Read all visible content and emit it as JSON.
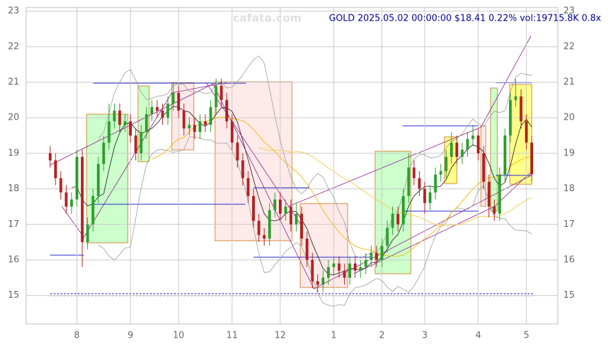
{
  "chart_data": {
    "type": "candlestick",
    "title": "GOLD 2025.05.02 00:00:00 $18.41 0.22% vol:19715.8K 0.8x",
    "watermark": "cafata.com",
    "categories": [
      null,
      null,
      null,
      null,
      null,
      "8",
      null,
      null,
      null,
      null,
      null,
      null,
      null,
      null,
      null,
      "9",
      null,
      null,
      null,
      null,
      null,
      null,
      null,
      null,
      "10",
      null,
      null,
      null,
      null,
      null,
      null,
      null,
      null,
      null,
      "11",
      null,
      null,
      null,
      null,
      null,
      null,
      null,
      null,
      "12",
      null,
      null,
      null,
      null,
      null,
      null,
      null,
      null,
      null,
      "1",
      null,
      null,
      null,
      null,
      null,
      null,
      null,
      null,
      "2",
      null,
      null,
      null,
      null,
      null,
      null,
      null,
      "3",
      null,
      null,
      null,
      null,
      null,
      null,
      null,
      null,
      null,
      "4",
      null,
      null,
      null,
      null,
      null,
      null,
      null,
      null,
      "5",
      null
    ],
    "open": [
      19.0,
      18.8,
      18.3,
      17.9,
      17.5,
      17.7,
      18.9,
      16.5,
      17.0,
      17.8,
      18.7,
      19.3,
      19.9,
      20.2,
      19.8,
      19.9,
      19.5,
      19.0,
      19.6,
      20.1,
      20.3,
      20.2,
      20.0,
      20.4,
      20.7,
      20.2,
      19.7,
      19.8,
      19.6,
      19.9,
      19.8,
      20.3,
      20.9,
      20.5,
      19.9,
      19.3,
      18.8,
      18.3,
      17.8,
      17.1,
      16.7,
      16.6,
      17.4,
      17.7,
      17.3,
      17.5,
      17.0,
      17.3,
      16.6,
      16.0,
      15.4,
      15.3,
      15.5,
      15.8,
      15.9,
      15.7,
      15.5,
      15.9,
      15.7,
      15.8,
      16.0,
      16.2,
      16.0,
      16.4,
      16.9,
      17.3,
      17.0,
      17.8,
      18.6,
      18.3,
      18.0,
      17.6,
      17.9,
      18.4,
      18.5,
      18.9,
      19.3,
      18.9,
      19.1,
      19.4,
      19.5,
      19.0,
      18.2,
      17.5,
      17.3,
      18.4,
      19.5,
      20.5,
      20.6,
      19.9,
      19.3
    ],
    "high": [
      19.2,
      19.0,
      18.5,
      18.1,
      17.9,
      19.1,
      19.1,
      17.2,
      18.0,
      18.9,
      19.5,
      20.4,
      20.4,
      20.4,
      20.1,
      20.1,
      19.7,
      19.8,
      20.3,
      20.5,
      20.5,
      20.4,
      20.6,
      21.0,
      20.9,
      20.4,
      20.0,
      20.0,
      20.1,
      20.1,
      20.5,
      21.1,
      21.1,
      20.7,
      20.1,
      19.5,
      19.0,
      18.5,
      18.0,
      17.3,
      16.9,
      17.6,
      17.9,
      17.9,
      17.7,
      17.7,
      17.6,
      17.5,
      16.8,
      16.2,
      15.6,
      15.7,
      16.0,
      16.1,
      16.1,
      15.9,
      16.1,
      16.1,
      16.0,
      16.2,
      16.4,
      16.4,
      16.6,
      17.1,
      17.5,
      17.5,
      18.0,
      19.0,
      18.8,
      18.5,
      18.2,
      18.1,
      18.6,
      18.7,
      19.1,
      19.6,
      19.5,
      19.3,
      19.6,
      19.8,
      19.7,
      19.2,
      18.4,
      17.7,
      18.6,
      19.7,
      20.7,
      21.1,
      20.8,
      20.1,
      19.5
    ],
    "low": [
      18.6,
      18.1,
      17.7,
      17.3,
      17.3,
      17.5,
      15.8,
      16.3,
      16.8,
      17.6,
      18.5,
      19.1,
      19.7,
      19.6,
      19.6,
      19.3,
      18.8,
      18.8,
      19.4,
      19.9,
      20.0,
      19.8,
      19.8,
      20.2,
      20.0,
      19.5,
      19.5,
      19.4,
      19.4,
      19.6,
      19.6,
      20.1,
      20.3,
      19.7,
      19.1,
      18.6,
      18.1,
      17.6,
      16.9,
      16.5,
      16.4,
      16.4,
      17.2,
      17.1,
      17.1,
      16.8,
      16.8,
      16.4,
      15.8,
      15.2,
      15.1,
      15.1,
      15.3,
      15.6,
      15.5,
      15.3,
      15.3,
      15.5,
      15.5,
      15.6,
      15.8,
      15.8,
      15.8,
      16.2,
      16.7,
      16.8,
      16.8,
      17.6,
      18.1,
      17.8,
      17.3,
      17.4,
      17.7,
      18.2,
      18.3,
      18.7,
      18.7,
      18.7,
      18.9,
      19.2,
      18.8,
      18.0,
      17.2,
      17.1,
      17.1,
      18.2,
      19.3,
      20.3,
      19.7,
      19.1,
      18.2
    ],
    "close": [
      18.8,
      18.3,
      17.9,
      17.5,
      17.7,
      18.9,
      16.5,
      17.0,
      17.8,
      18.7,
      19.3,
      19.9,
      20.2,
      19.8,
      19.9,
      19.5,
      19.0,
      19.6,
      20.1,
      20.3,
      20.2,
      20.0,
      20.4,
      20.7,
      20.2,
      19.7,
      19.8,
      19.6,
      19.9,
      19.8,
      20.3,
      20.9,
      20.5,
      19.9,
      19.3,
      18.8,
      18.3,
      17.8,
      17.1,
      16.7,
      16.6,
      17.4,
      17.7,
      17.3,
      17.5,
      17.0,
      17.3,
      16.6,
      16.0,
      15.4,
      15.3,
      15.5,
      15.8,
      15.9,
      15.7,
      15.5,
      15.9,
      15.7,
      15.8,
      16.0,
      16.2,
      16.0,
      16.4,
      16.9,
      17.3,
      17.0,
      17.8,
      18.6,
      18.3,
      18.0,
      17.6,
      17.9,
      18.4,
      18.5,
      18.9,
      19.3,
      18.9,
      19.1,
      19.4,
      19.5,
      19.0,
      18.2,
      17.5,
      17.3,
      18.4,
      19.5,
      20.5,
      20.6,
      19.9,
      19.3,
      18.41
    ],
    "up_color": "#2ca02c",
    "down_color": "#b22222",
    "ylim": [
      14.2,
      23.1
    ],
    "yticks": [
      15,
      16,
      17,
      18,
      19,
      20,
      21,
      22,
      23
    ],
    "grid": true
  }
}
